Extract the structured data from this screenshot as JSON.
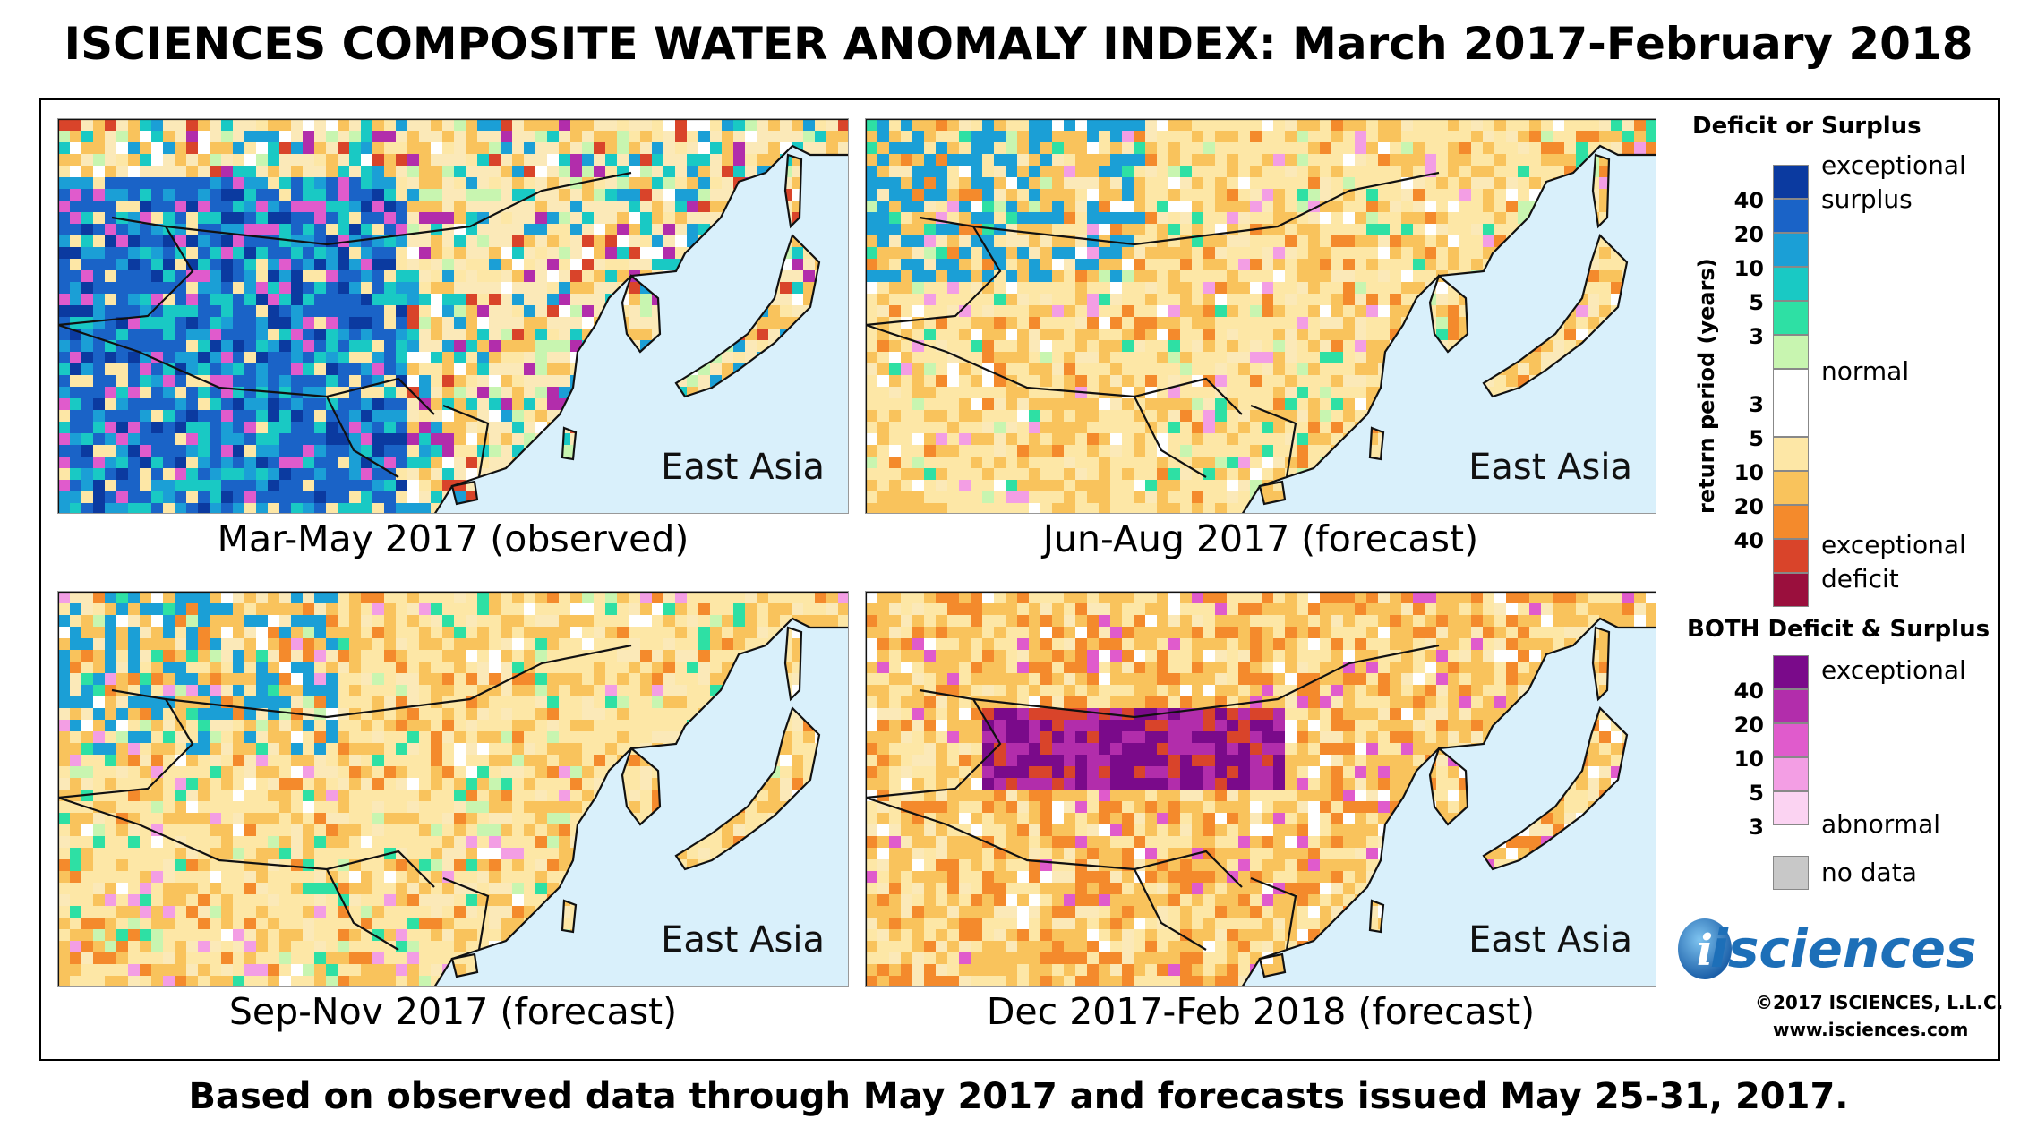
{
  "title": "ISCIENCES COMPOSITE WATER ANOMALY INDEX: March 2017-February 2018",
  "footer": "Based on observed data through May 2017 and forecasts issued May 25-31, 2017.",
  "panels": [
    {
      "region": "East Asia",
      "caption": "Mar-May 2017 (observed)",
      "dominant": "mixed-surplus"
    },
    {
      "region": "East Asia",
      "caption": "Jun-Aug 2017 (forecast)",
      "dominant": "moderate-deficit"
    },
    {
      "region": "East Asia",
      "caption": "Sep-Nov 2017 (forecast)",
      "dominant": "moderate-deficit"
    },
    {
      "region": "East Asia",
      "caption": "Dec 2017-Feb 2018 (forecast)",
      "dominant": "severe-deficit"
    }
  ],
  "legend": {
    "deficit_surplus_title": "Deficit or Surplus",
    "axis_label": "return period (years)",
    "surplus_top": "exceptional",
    "surplus_top2": "surplus",
    "normal": "normal",
    "deficit_bottom": "exceptional",
    "deficit_bottom2": "deficit",
    "surplus_ticks": [
      "40",
      "20",
      "10",
      "5",
      "3"
    ],
    "deficit_ticks": [
      "3",
      "5",
      "10",
      "20",
      "40"
    ],
    "surplus_colors": [
      "#0b3aa0",
      "#1a63c7",
      "#1b9fd6",
      "#19c9c4",
      "#2ee0a4",
      "#c8f5b0"
    ],
    "normal_color": "#ffffff",
    "deficit_colors": [
      "#fde7a6",
      "#f9c35c",
      "#f48a2c",
      "#d9442a",
      "#9a0f3d"
    ],
    "both_title": "BOTH Deficit & Surplus",
    "both_top": "exceptional",
    "both_bottom": "abnormal",
    "both_ticks": [
      "40",
      "20",
      "10",
      "5",
      "3"
    ],
    "both_colors": [
      "#7a0a8a",
      "#b22dab",
      "#e05bcc",
      "#f39ee4",
      "#fbd3f2"
    ],
    "nodata": "no data",
    "nodata_color": "#c8c8c8"
  },
  "logo": {
    "text": "isciences",
    "initial": "i"
  },
  "copyright": "©2017 ISCIENCES, L.L.C.",
  "website": "www.isciences.com",
  "colors": {
    "sea": "#d9f0fb",
    "land_normal": "#fbe9b8"
  }
}
